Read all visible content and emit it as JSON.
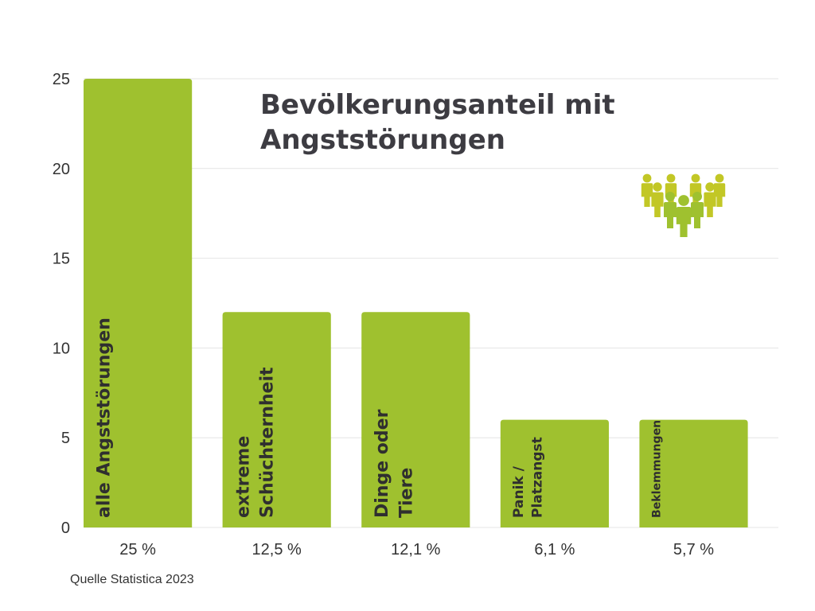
{
  "chart_data": {
    "type": "bar",
    "title_lines": [
      "Bevölkerungsanteil mit",
      "Angststörungen"
    ],
    "categories": [
      [
        "alle Angststörungen"
      ],
      [
        "extreme",
        "Schüchternheit"
      ],
      [
        "Dinge oder",
        "Tiere"
      ],
      [
        "Panik /",
        "Platzangst"
      ],
      [
        "Beklemmungen"
      ]
    ],
    "values": [
      25,
      12,
      12,
      6,
      6
    ],
    "value_labels": [
      "25 %",
      "12,5 %",
      "12,1 %",
      "6,1 %",
      "5,7 %"
    ],
    "ylim": [
      0,
      25
    ],
    "yticks": [
      0,
      5,
      10,
      15,
      20,
      25
    ],
    "grid": true,
    "bar_color": "#9fc12f",
    "grid_color": "#e4e4e4"
  },
  "icon": {
    "name": "people-group-icon",
    "colors": [
      "#c2c726",
      "#9fc12f"
    ]
  },
  "source": "Quelle Statistica 2023"
}
